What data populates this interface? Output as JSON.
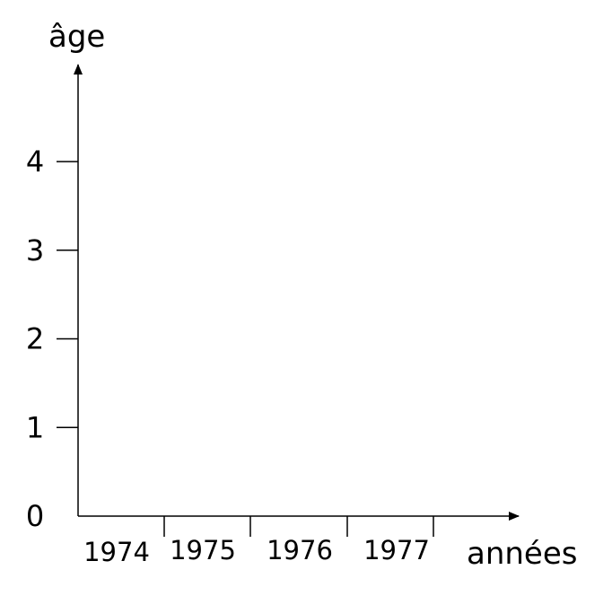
{
  "chart_data": {
    "type": "line",
    "title": "",
    "xlabel": "années",
    "ylabel": "âge",
    "x_tick_labels": [
      "1974",
      "1975",
      "1976",
      "1977"
    ],
    "y_ticks": [
      0,
      1,
      2,
      3,
      4
    ],
    "y_tick_labels": [
      "0",
      "1",
      "2",
      "3",
      "4"
    ],
    "ylim": [
      0,
      4
    ],
    "series": [],
    "grid": false,
    "legend": "none",
    "colors": {
      "axis": "#000000",
      "background": "#ffffff"
    }
  }
}
